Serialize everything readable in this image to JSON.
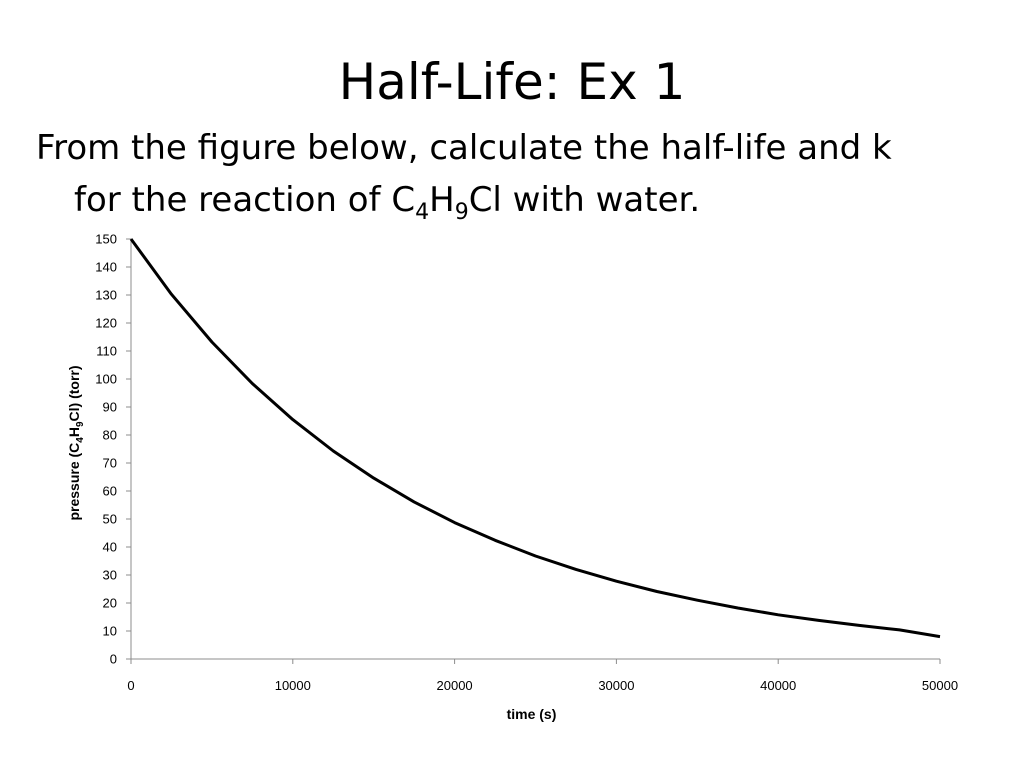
{
  "slide": {
    "title": "Half-Life:  Ex 1",
    "body_line1": "From the figure below, calculate the half-life and k",
    "body_line2_prefix": "for the reaction of C",
    "body_line2_sub1": "4",
    "body_line2_mid": "H",
    "body_line2_sub2": "9",
    "body_line2_suffix": "Cl with water."
  },
  "chart_data": {
    "type": "line",
    "title": "",
    "xlabel": "time (s)",
    "ylabel": {
      "prefix": "pressure (C",
      "sub1": "4",
      "mid": "H",
      "sub2": "9",
      "suffix": "Cl) (torr)"
    },
    "xlim": [
      0,
      50000
    ],
    "ylim": [
      0,
      150
    ],
    "xticks": [
      0,
      10000,
      20000,
      30000,
      40000,
      50000
    ],
    "yticks": [
      0,
      10,
      20,
      30,
      40,
      50,
      60,
      70,
      80,
      90,
      100,
      110,
      120,
      130,
      140,
      150
    ],
    "grid": false,
    "legend": "none",
    "line_color": "#000000",
    "series": [
      {
        "x": [
          0,
          2500,
          5000,
          7500,
          10000,
          12500,
          15000,
          17500,
          20000,
          22500,
          25000,
          27500,
          30000,
          32500,
          35000,
          37500,
          40000,
          42500,
          45000,
          47500,
          50000
        ],
        "values": [
          150,
          130.3,
          113.2,
          98.4,
          85.5,
          74.3,
          64.6,
          56.1,
          48.7,
          42.4,
          36.8,
          32.0,
          27.8,
          24.1,
          21.0,
          18.2,
          15.8,
          13.8,
          12.0,
          10.4,
          8.0
        ]
      }
    ]
  }
}
